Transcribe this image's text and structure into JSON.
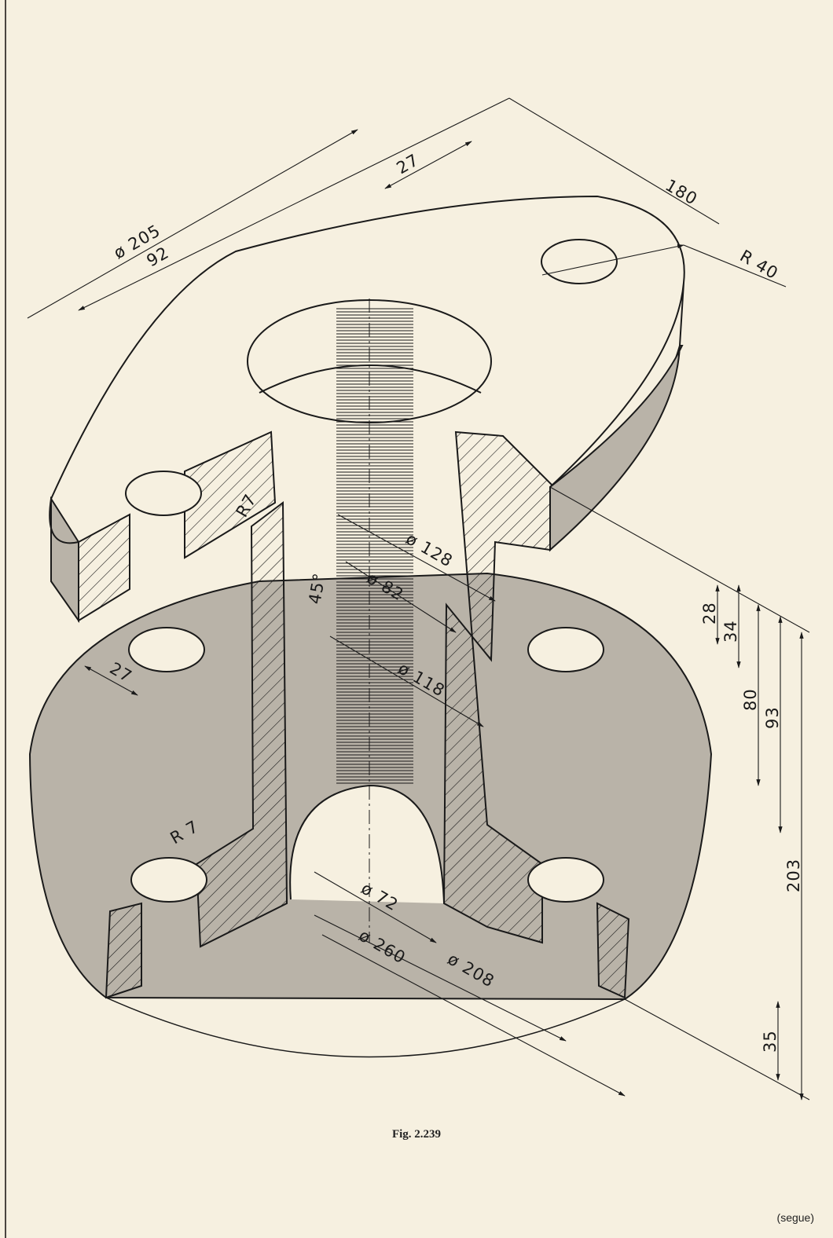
{
  "figure": {
    "caption": "Fig. 2.239",
    "continues_note": "(segue)"
  },
  "dimensions": {
    "top_flange_diameter": "ø 205",
    "top_flange_width": "92",
    "top_hole_offset": "27",
    "top_flange_length": "180",
    "lug_radius": "R 40",
    "fillet_radius_top": "R7",
    "chamfer_angle": "45°",
    "bore_diameter_128": "ø 128",
    "bore_diameter_82": "ø 82",
    "bore_diameter_118": "ø 118",
    "base_hole_diameter": "27",
    "fillet_radius_base": "R 7",
    "inner_diameter_72": "ø 72",
    "base_diameter_260": "ø 260",
    "base_diameter_208": "ø 208",
    "height_28": "28",
    "height_34": "34",
    "height_80": "80",
    "height_93": "93",
    "overall_height": "203",
    "base_thickness": "35"
  },
  "colors": {
    "paper": "#f6f0e0",
    "ink": "#1a1a1a",
    "shade": "#b9b3a8"
  }
}
